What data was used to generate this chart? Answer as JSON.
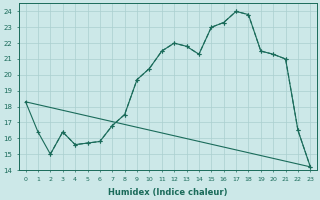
{
  "xlabel": "Humidex (Indice chaleur)",
  "xlim": [
    -0.5,
    23.5
  ],
  "ylim": [
    14,
    24.5
  ],
  "yticks": [
    14,
    15,
    16,
    17,
    18,
    19,
    20,
    21,
    22,
    23,
    24
  ],
  "xticks": [
    0,
    1,
    2,
    3,
    4,
    5,
    6,
    7,
    8,
    9,
    10,
    11,
    12,
    13,
    14,
    15,
    16,
    17,
    18,
    19,
    20,
    21,
    22,
    23
  ],
  "bg_color": "#cce8e8",
  "line_color": "#1a6b5a",
  "grid_color": "#aacfcf",
  "line1_x": [
    0,
    1,
    2,
    3,
    4,
    5,
    6,
    7,
    8,
    9,
    10,
    11,
    12,
    13,
    14,
    15,
    16,
    17,
    18,
    19,
    20,
    21,
    22,
    23
  ],
  "line1_y": [
    18.3,
    16.4,
    15.0,
    16.4,
    15.6,
    15.7,
    15.8,
    16.8,
    17.5,
    19.7,
    20.4,
    21.5,
    22.0,
    21.8,
    21.3,
    23.0,
    23.3,
    24.0,
    23.8,
    21.5,
    21.3,
    21.0,
    16.5,
    14.2
  ],
  "line2_x": [
    0,
    23
  ],
  "line2_y": [
    18.3,
    14.2
  ],
  "line3_x": [
    2,
    3,
    4,
    5,
    6,
    7,
    8,
    9,
    10,
    11,
    12,
    13,
    14,
    15,
    16,
    17,
    18,
    19,
    20,
    21,
    22,
    23
  ],
  "line3_y": [
    15.0,
    16.4,
    15.6,
    15.7,
    15.8,
    16.8,
    17.5,
    19.7,
    20.4,
    21.5,
    22.0,
    21.8,
    21.3,
    23.0,
    23.3,
    24.0,
    23.8,
    21.5,
    21.3,
    21.0,
    16.5,
    14.2
  ]
}
